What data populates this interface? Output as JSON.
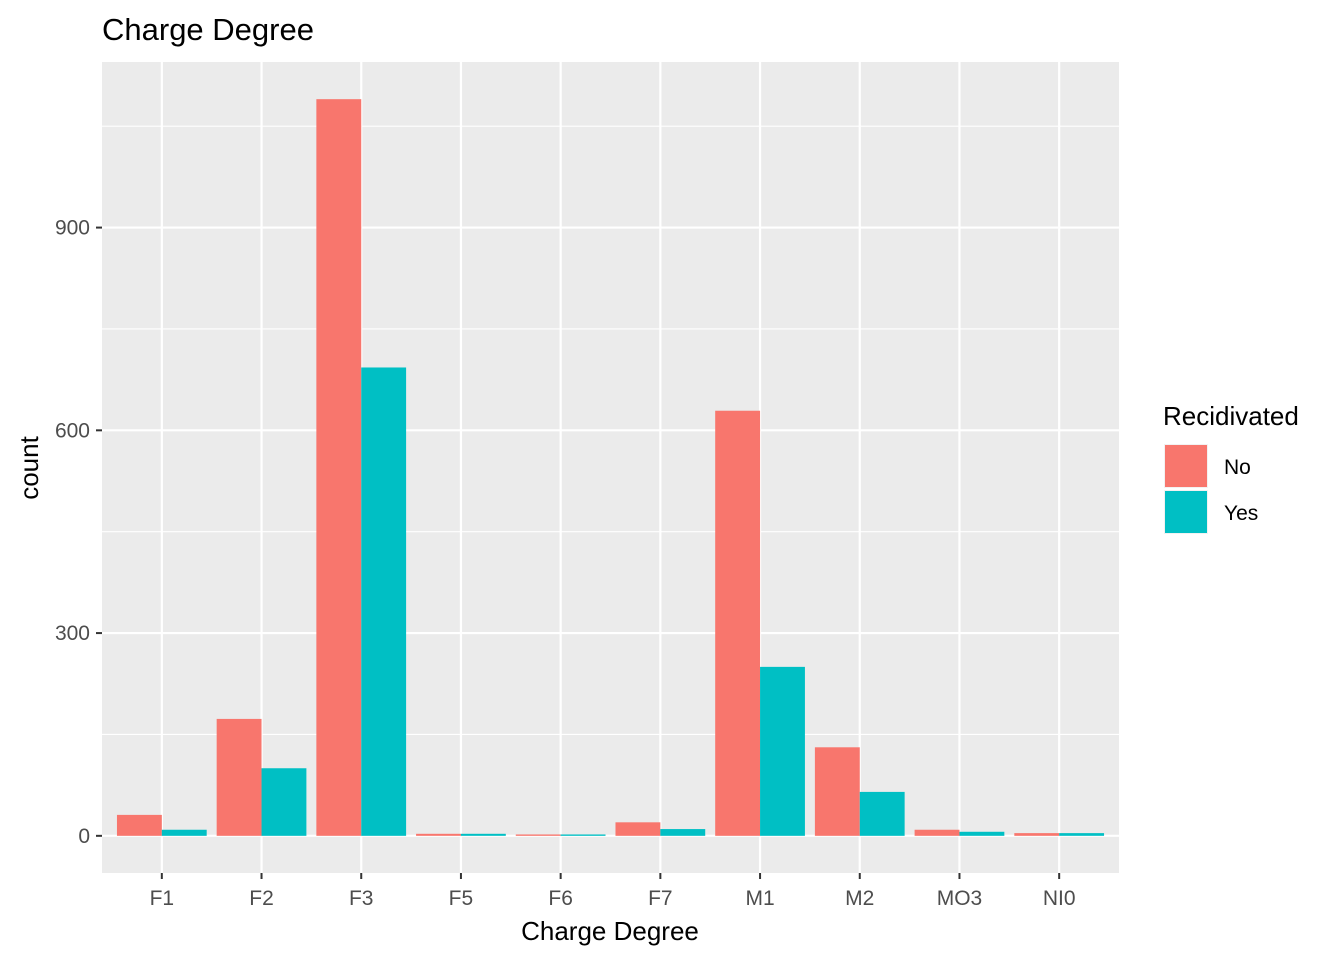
{
  "chart_data": {
    "type": "bar",
    "title": "Charge Degree",
    "xlabel": "Charge Degree",
    "ylabel": "count",
    "categories": [
      "F1",
      "F2",
      "F3",
      "F5",
      "F6",
      "F7",
      "M1",
      "M2",
      "MO3",
      "NI0"
    ],
    "series": [
      {
        "name": "No",
        "color": "#F8766D",
        "values": [
          31,
          173,
          1090,
          3,
          2,
          20,
          629,
          131,
          9,
          4
        ]
      },
      {
        "name": "Yes",
        "color": "#00BFC4",
        "values": [
          9,
          100,
          693,
          3,
          2,
          10,
          250,
          65,
          6,
          4
        ]
      }
    ],
    "yticks": [
      0,
      300,
      600,
      900
    ],
    "ylim": [
      -55,
      1145
    ],
    "grid": true,
    "legend": {
      "title": "Recidivated",
      "position": "right"
    }
  }
}
